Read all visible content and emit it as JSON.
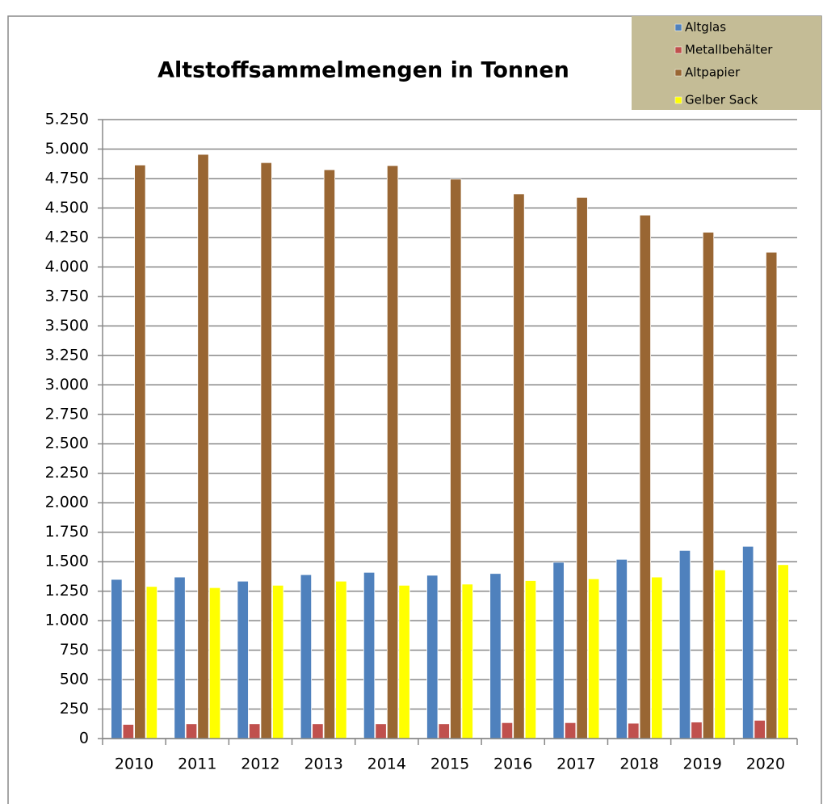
{
  "chart_data": {
    "type": "bar",
    "title": "Altstoffsammelmengen in Tonnen",
    "categories": [
      "2010",
      "2011",
      "2012",
      "2013",
      "2014",
      "2015",
      "2016",
      "2017",
      "2018",
      "2019",
      "2020"
    ],
    "series": [
      {
        "name": "Altglas",
        "color": "#4f81bd",
        "values": [
          1350,
          1370,
          1335,
          1390,
          1410,
          1385,
          1400,
          1495,
          1520,
          1595,
          1630
        ]
      },
      {
        "name": "Metallbehälter",
        "color": "#c0504d",
        "values": [
          120,
          125,
          125,
          125,
          125,
          125,
          135,
          135,
          130,
          140,
          155
        ]
      },
      {
        "name": "Altpapier",
        "color": "#996633",
        "values": [
          4865,
          4955,
          4885,
          4825,
          4860,
          4745,
          4620,
          4590,
          4440,
          4295,
          4125
        ]
      },
      {
        "name": "Gelber Sack",
        "color": "#ffff00",
        "values": [
          1290,
          1280,
          1300,
          1335,
          1300,
          1310,
          1340,
          1355,
          1370,
          1430,
          1475
        ]
      }
    ],
    "ylim": [
      0,
      5250
    ],
    "yticks": [
      0,
      250,
      500,
      750,
      {
        "value": 1000,
        "label": "1.000"
      },
      {
        "value": 1250,
        "label": "1.250"
      },
      {
        "value": 1500,
        "label": "1.500"
      },
      {
        "value": 1750,
        "label": "1.750"
      },
      {
        "value": 2000,
        "label": "2.000"
      },
      {
        "value": 2250,
        "label": "2.250"
      },
      {
        "value": 2500,
        "label": "2.500"
      },
      {
        "value": 2750,
        "label": "2.750"
      },
      {
        "value": 3000,
        "label": "3.000"
      },
      {
        "value": 3250,
        "label": "3.250"
      },
      {
        "value": 3500,
        "label": "3.500"
      },
      {
        "value": 3750,
        "label": "3.750"
      },
      {
        "value": 4000,
        "label": "4.000"
      },
      {
        "value": 4250,
        "label": "4.250"
      },
      {
        "value": 4500,
        "label": "4.500"
      },
      {
        "value": 4750,
        "label": "4.750"
      },
      {
        "value": 5000,
        "label": "5.000"
      },
      {
        "value": 5250,
        "label": "5.250"
      }
    ],
    "grid": true,
    "legend": "top-right"
  }
}
